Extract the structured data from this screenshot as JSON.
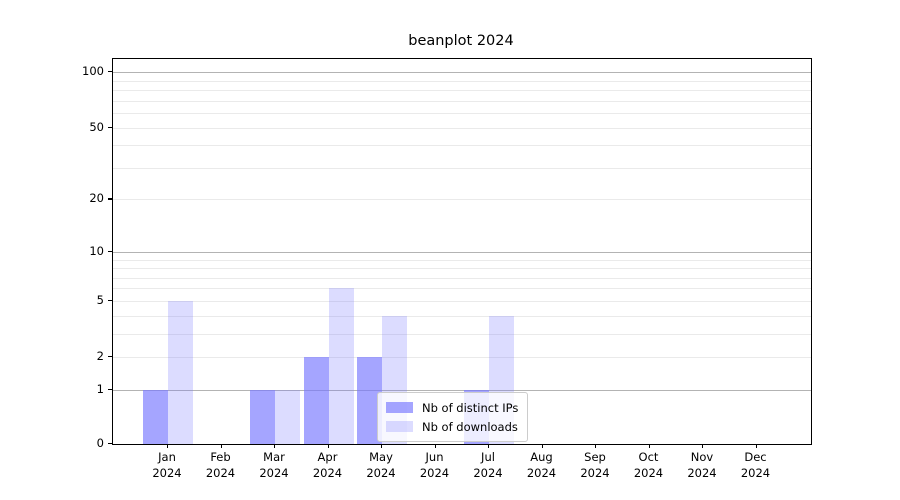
{
  "title": "beanplot 2024",
  "chart_data": {
    "type": "bar",
    "title": "beanplot 2024",
    "categories": [
      "Jan 2024",
      "Feb 2024",
      "Mar 2024",
      "Apr 2024",
      "May 2024",
      "Jun 2024",
      "Jul 2024",
      "Aug 2024",
      "Sep 2024",
      "Oct 2024",
      "Nov 2024",
      "Dec 2024"
    ],
    "category_line1": [
      "Jan",
      "Feb",
      "Mar",
      "Apr",
      "May",
      "Jun",
      "Jul",
      "Aug",
      "Sep",
      "Oct",
      "Nov",
      "Dec"
    ],
    "category_line2": [
      "2024",
      "2024",
      "2024",
      "2024",
      "2024",
      "2024",
      "2024",
      "2024",
      "2024",
      "2024",
      "2024",
      "2024"
    ],
    "series": [
      {
        "name": "Nb of distinct IPs",
        "color": "rgba(119,119,255,0.66)",
        "values": [
          1,
          0,
          1,
          2,
          2,
          0,
          1,
          0,
          0,
          0,
          0,
          0
        ]
      },
      {
        "name": "Nb of downloads",
        "color": "rgba(119,119,255,0.26)",
        "values": [
          5,
          0,
          1,
          6,
          4,
          0,
          4,
          0,
          0,
          0,
          0,
          0
        ]
      }
    ],
    "xlabel": "",
    "ylabel": "",
    "yscale": "log1p",
    "ylim": [
      0,
      118
    ],
    "ytick_labels": [
      0,
      1,
      2,
      5,
      10,
      20,
      50,
      100
    ],
    "major_gridlines": [
      1,
      10,
      100
    ],
    "minor_gridlines": [
      2,
      3,
      4,
      5,
      6,
      7,
      8,
      9,
      20,
      30,
      40,
      50,
      60,
      70,
      80,
      90
    ],
    "grid": true,
    "legend": {
      "position": "lower center",
      "entries": [
        "Nb of distinct IPs",
        "Nb of downloads"
      ]
    },
    "colors": {
      "major_grid": "#b3b3b3",
      "minor_grid": "#eaeaea",
      "axis": "#000000",
      "bar_base": "#7777ff"
    }
  }
}
